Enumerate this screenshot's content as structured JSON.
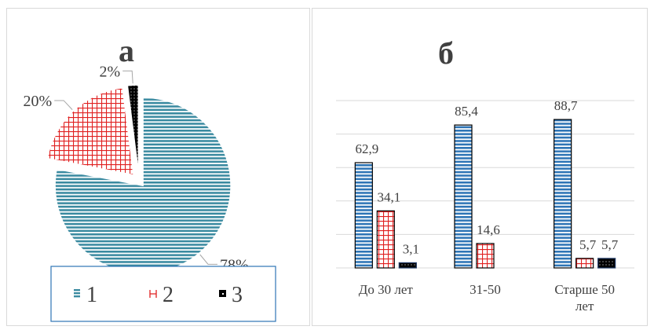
{
  "colors": {
    "blue": "#2e75b6",
    "teal": "#3a8aa0",
    "red": "#e02020",
    "black": "#000000",
    "grid": "#d9d9d9",
    "text": "#404040"
  },
  "chart_data": [
    {
      "type": "pie",
      "title": "а",
      "slices": [
        {
          "label": "78%",
          "value": 78,
          "legend": "1",
          "color": "#3a8aa0",
          "pattern": "horizontal-stripes"
        },
        {
          "label": "20%",
          "value": 20,
          "legend": "2",
          "color": "#e02020",
          "pattern": "grid"
        },
        {
          "label": "2%",
          "value": 2,
          "legend": "3",
          "color": "#000000",
          "pattern": "dots"
        }
      ],
      "exploded": true,
      "legend": {
        "position": "bottom",
        "entries": [
          "1",
          "2",
          "3"
        ]
      }
    },
    {
      "type": "bar",
      "title": "б",
      "categories": [
        "До 30 лет",
        "31-50",
        "Старше 50 лет"
      ],
      "series": [
        {
          "values": [
            62.9,
            85.4,
            88.7
          ],
          "labels": [
            "62,9",
            "85,4",
            "88,7"
          ],
          "color": "#2e75b6",
          "pattern": "horizontal-stripes"
        },
        {
          "values": [
            34.1,
            14.6,
            5.7
          ],
          "labels": [
            "34,1",
            "14,6",
            "5,7"
          ],
          "color": "#e02020",
          "pattern": "grid"
        },
        {
          "values": [
            3.1,
            0,
            5.7
          ],
          "labels": [
            "3,1",
            "",
            "5,7"
          ],
          "color": "#000000",
          "pattern": "dots"
        }
      ],
      "ylim": [
        0,
        100
      ],
      "grid": true,
      "legend": "none"
    }
  ]
}
